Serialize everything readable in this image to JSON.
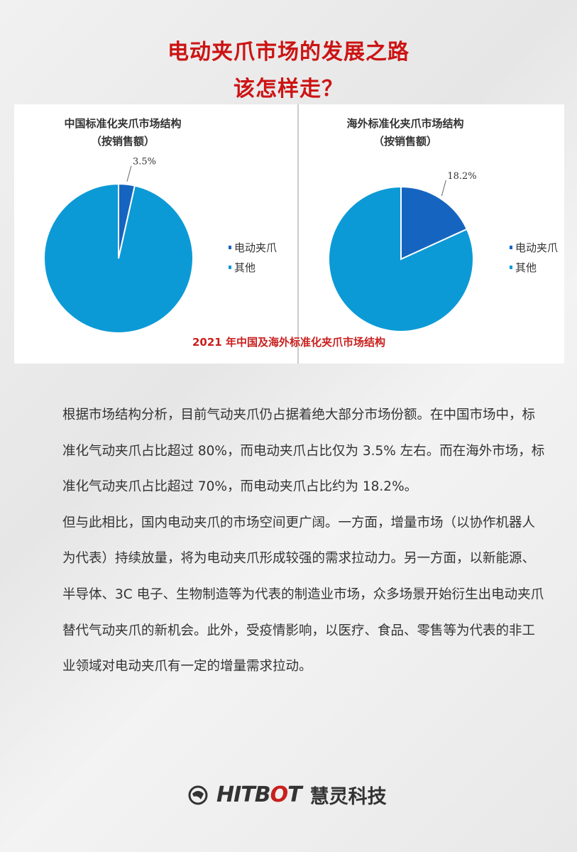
{
  "title": {
    "line1": "电动夹爪市场的发展之路",
    "line2": "该怎样走？"
  },
  "chart_data": [
    {
      "type": "pie",
      "title": "中国标准化夹爪市场结构",
      "subtitle": "（按销售额）",
      "slices": [
        {
          "name": "电动夹爪",
          "value": 3.5,
          "label": "3.5%",
          "color": "#1565c0"
        },
        {
          "name": "其他",
          "value": 96.5,
          "color": "#0c9ad6"
        }
      ],
      "legend": [
        "电动夹爪",
        "其他"
      ],
      "legend_position": "right"
    },
    {
      "type": "pie",
      "title": "海外标准化夹爪市场结构",
      "subtitle": "（按销售额）",
      "slices": [
        {
          "name": "电动夹爪",
          "value": 18.2,
          "label": "18.2%",
          "color": "#1565c0"
        },
        {
          "name": "其他",
          "value": 81.8,
          "color": "#0c9ad6"
        }
      ],
      "legend": [
        "电动夹爪",
        "其他"
      ],
      "legend_position": "right"
    }
  ],
  "caption": "2021 年中国及海外标准化夹爪市场结构",
  "paragraphs": [
    "根据市场结构分析，目前气动夹爪仍占据着绝大部分市场份额。在中国市场中，标准化气动夹爪占比超过 80%，而电动夹爪占比仅为 3.5% 左右。而在海外市场，标准化气动夹爪占比超过 70%，而电动夹爪占比约为 18.2%。",
    "但与此相比，国内电动夹爪的市场空间更广阔。一方面，增量市场（以协作机器人为代表）持续放量，将为电动夹爪形成较强的需求拉动力。另一方面，以新能源、半导体、3C 电子、生物制造等为代表的制造业市场，众多场景开始衍生出电动夹爪替代气动夹爪的新机会。此外，受疫情影响，以医疗、食品、零售等为代表的非工业领域对电动夹爪有一定的增量需求拉动。"
  ],
  "logo": {
    "brand_a": "HITB",
    "brand_o": "O",
    "brand_b": "T",
    "name_cn": "慧灵科技"
  }
}
